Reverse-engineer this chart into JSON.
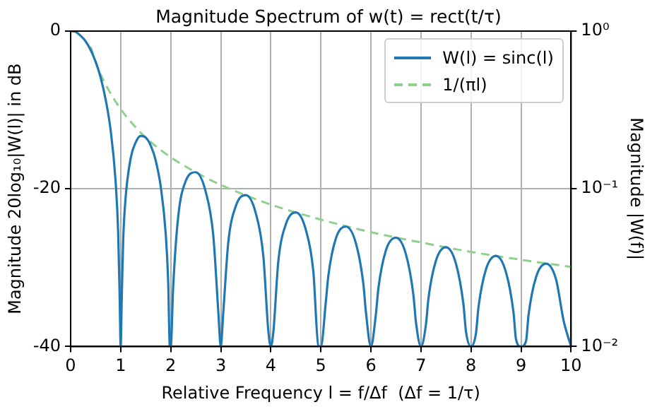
{
  "chart_data": {
    "type": "line",
    "title": "Magnitude Spectrum of w(t) = rect(t/τ)",
    "xlabel": "Relative Frequency l = f/Δf  (Δf = 1/τ)",
    "ylabel": "Magnitude 20log₁₀|W(l)| in dB",
    "y2label": "Magnitude |W(f)|",
    "series": [
      {
        "name": "W(l) = sinc(l)",
        "color": "#1f77b4",
        "x": [
          0,
          0.1,
          0.2,
          0.3,
          0.4,
          0.5,
          0.6,
          0.7,
          0.8,
          0.9,
          0.95,
          0.98,
          1,
          1.02,
          1.05,
          1.1,
          1.2,
          1.3,
          1.4,
          1.5,
          1.6,
          1.7,
          1.8,
          1.9,
          1.95,
          1.98,
          2,
          2.05,
          2.15,
          2.3,
          2.5,
          2.7,
          2.85,
          2.95,
          3,
          3.05,
          3.15,
          3.3,
          3.5,
          3.7,
          3.85,
          3.95,
          4,
          4.05,
          4.15,
          4.3,
          4.5,
          4.7,
          4.85,
          4.95,
          5,
          5.1,
          5.15,
          5.3,
          5.5,
          5.7,
          5.85,
          5.9,
          6,
          6.1,
          6.15,
          6.3,
          6.5,
          6.7,
          6.85,
          6.9,
          7,
          7.1,
          7.15,
          7.3,
          7.5,
          7.7,
          7.85,
          7.9,
          8,
          8.1,
          8.15,
          8.3,
          8.5,
          8.7,
          8.85,
          8.9,
          9,
          9.1,
          9.15,
          9.3,
          9.5,
          9.7,
          9.85,
          10
        ],
        "values": [
          0,
          -0.1,
          -0.6,
          -1.3,
          -2.4,
          -3.9,
          -5.9,
          -8.7,
          -12.6,
          -19.2,
          -25.6,
          -33.8,
          -40,
          -34.2,
          -26.5,
          -21,
          -16.1,
          -14.1,
          -13.3,
          -13.5,
          -14.5,
          -16.4,
          -19.7,
          -25.7,
          -31.9,
          -39.9,
          -40,
          -32.3,
          -23.5,
          -19,
          -17.9,
          -20.4,
          -25.9,
          -35.5,
          -40,
          -35.7,
          -26.8,
          -22.2,
          -20.8,
          -23.1,
          -28.5,
          -38,
          -40,
          -38.2,
          -29.2,
          -24.5,
          -23,
          -25.2,
          -30.5,
          -39.9,
          -40,
          -34.3,
          -31,
          -26.3,
          -24.8,
          -26.9,
          -32.1,
          -35.6,
          -40,
          -35.9,
          -32.6,
          -27.8,
          -26.2,
          -28.3,
          -33.5,
          -36.9,
          -40,
          -37.2,
          -33.9,
          -29.1,
          -27.4,
          -29.5,
          -34.7,
          -38.1,
          -40,
          -38.3,
          -35,
          -30.2,
          -28.5,
          -30.6,
          -35.7,
          -39.1,
          -40,
          -39.3,
          -36,
          -31.2,
          -29.5,
          -31.5,
          -36.7,
          -40
        ]
      },
      {
        "name": "1/(πl)",
        "color": "#8dd18d",
        "line_style": "dashed",
        "x": [
          0.4,
          0.5,
          0.6,
          0.7,
          1,
          1.2,
          1.5,
          2,
          2.5,
          3,
          4,
          5,
          6,
          7,
          8,
          9,
          10
        ],
        "values": [
          -2,
          -3.9,
          -5.5,
          -6.8,
          -9.9,
          -11.5,
          -13.5,
          -16,
          -17.9,
          -19.5,
          -22,
          -23.9,
          -25.5,
          -26.8,
          -28,
          -29,
          -29.9
        ]
      }
    ],
    "xlim": [
      0,
      10
    ],
    "xticks": [
      0,
      1,
      2,
      3,
      4,
      5,
      6,
      7,
      8,
      9,
      10
    ],
    "ylim": [
      -40,
      0
    ],
    "yticks": [
      -40,
      -20,
      0
    ],
    "y2lim": [
      0.01,
      1
    ],
    "log": "y2",
    "y2ticks": [
      {
        "value": 1,
        "label": "10⁰"
      },
      {
        "value": 0.1,
        "label": "10⁻¹"
      },
      {
        "value": 0.01,
        "label": "10⁻²"
      }
    ],
    "grid": true,
    "legend": "top right",
    "marker": "none"
  }
}
